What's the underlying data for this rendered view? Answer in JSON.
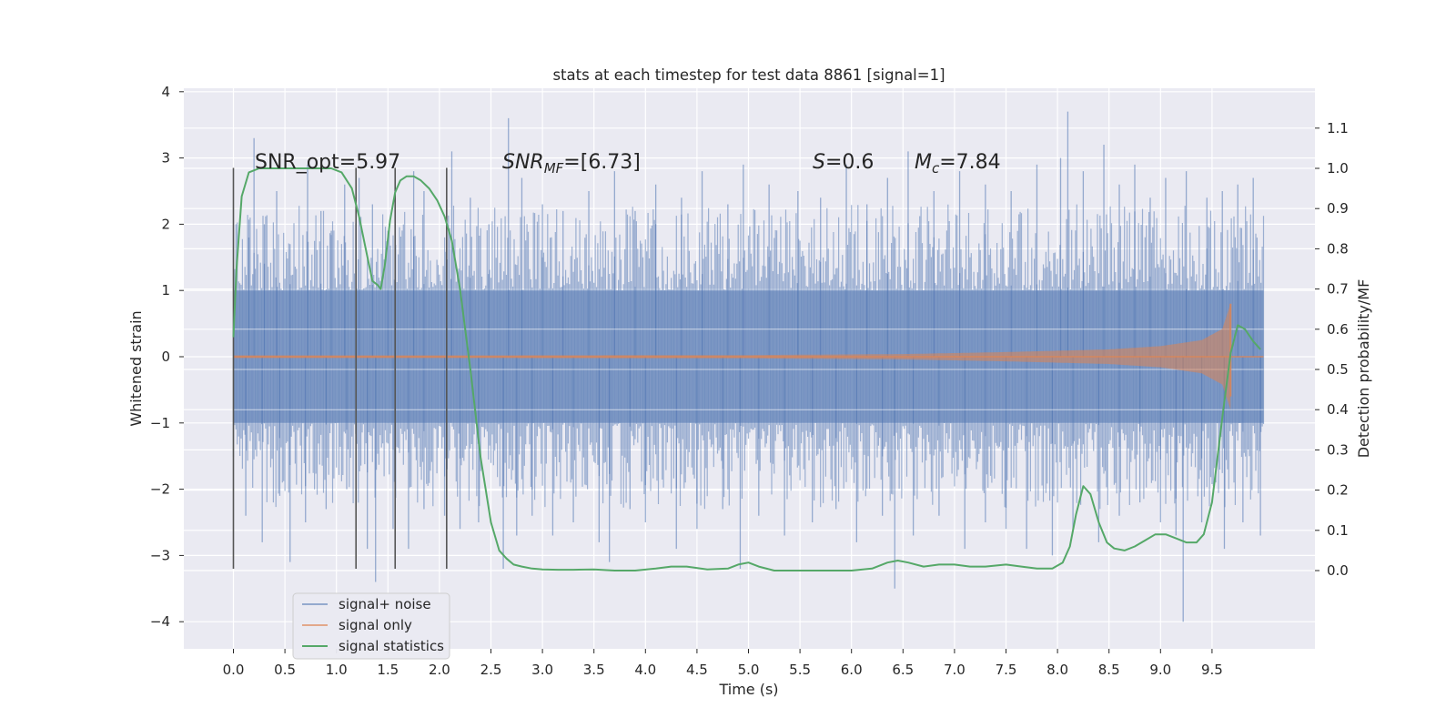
{
  "chart_data": {
    "type": "line",
    "title": "stats at each timestep for test data 8861 [signal=1]",
    "xlabel": "Time (s)",
    "ylabel_left": "Whitened strain",
    "ylabel_right": "Detection probability/MF",
    "xlim": [
      -0.5,
      10.5
    ],
    "ylim_left": [
      -4.4,
      4.1
    ],
    "ylim_right": [
      -0.2,
      1.2
    ],
    "x_ticks": [
      "0.0",
      "0.5",
      "1.0",
      "1.5",
      "2.0",
      "2.5",
      "3.0",
      "3.5",
      "4.0",
      "4.5",
      "5.0",
      "5.5",
      "6.0",
      "6.5",
      "7.0",
      "7.5",
      "8.0",
      "8.5",
      "9.0",
      "9.5"
    ],
    "y_ticks_left": [
      "4",
      "3",
      "2",
      "1",
      "0",
      "−1",
      "−2",
      "−3",
      "−4"
    ],
    "y_ticks_right": [
      "1.1",
      "1.0",
      "0.9",
      "0.8",
      "0.7",
      "0.6",
      "0.5",
      "0.4",
      "0.3",
      "0.2",
      "0.1",
      "0.0"
    ],
    "grid": true,
    "legend_position": "lower-left",
    "annotations": [
      {
        "text": "SNR_opt=5.97",
        "x": 0.2,
        "y": 2.95
      },
      {
        "text": "SNR_MF=[6.73]",
        "x": 2.6,
        "y": 2.95
      },
      {
        "text": "S=0.6",
        "x": 5.6,
        "y": 2.95
      },
      {
        "text": "M_c=7.84",
        "x": 6.6,
        "y": 2.95
      }
    ],
    "vertical_lines": [
      0.0,
      1.19,
      1.57,
      2.07
    ],
    "vertical_line_range": [
      -3.2,
      2.85
    ],
    "series": [
      {
        "name": "signal+ noise",
        "color": "#4c72b0",
        "t_range": [
          0.0,
          10.0
        ],
        "band_core": [
          -1.0,
          1.0
        ],
        "spikes": [
          [
            0.15,
            1.8
          ],
          [
            0.2,
            3.3
          ],
          [
            0.3,
            2.0
          ],
          [
            0.42,
            2.5
          ],
          [
            0.55,
            1.7
          ],
          [
            0.72,
            2.9
          ],
          [
            0.85,
            2.2
          ],
          [
            0.95,
            1.9
          ],
          [
            1.08,
            2.6
          ],
          [
            1.22,
            2.7
          ],
          [
            1.35,
            2.3
          ],
          [
            1.5,
            1.9
          ],
          [
            1.75,
            2.8
          ],
          [
            1.85,
            2.5
          ],
          [
            2.12,
            3.1
          ],
          [
            2.3,
            2.4
          ],
          [
            2.48,
            2.0
          ],
          [
            2.67,
            3.6
          ],
          [
            2.8,
            2.7
          ],
          [
            3.0,
            2.3
          ],
          [
            3.2,
            2.2
          ],
          [
            3.45,
            2.5
          ],
          [
            3.7,
            2.8
          ],
          [
            3.9,
            2.2
          ],
          [
            4.1,
            2.6
          ],
          [
            4.35,
            2.4
          ],
          [
            4.55,
            2.8
          ],
          [
            4.8,
            2.3
          ],
          [
            4.95,
            2.9
          ],
          [
            5.2,
            2.6
          ],
          [
            5.48,
            2.5
          ],
          [
            5.7,
            2.4
          ],
          [
            5.95,
            2.9
          ],
          [
            6.15,
            2.3
          ],
          [
            6.35,
            2.7
          ],
          [
            6.55,
            3.1
          ],
          [
            6.8,
            2.5
          ],
          [
            7.05,
            2.8
          ],
          [
            7.3,
            2.6
          ],
          [
            7.55,
            2.5
          ],
          [
            7.8,
            2.9
          ],
          [
            8.03,
            3.0
          ],
          [
            8.1,
            3.7
          ],
          [
            8.25,
            2.8
          ],
          [
            8.45,
            3.2
          ],
          [
            8.6,
            2.6
          ],
          [
            8.75,
            2.9
          ],
          [
            8.9,
            2.4
          ],
          [
            9.05,
            2.7
          ],
          [
            9.25,
            2.8
          ],
          [
            9.45,
            2.4
          ],
          [
            9.6,
            2.5
          ],
          [
            9.75,
            2.6
          ],
          [
            9.9,
            2.7
          ],
          [
            0.12,
            -2.4
          ],
          [
            0.28,
            -2.8
          ],
          [
            0.45,
            -2.1
          ],
          [
            0.55,
            -3.1
          ],
          [
            0.7,
            -2.5
          ],
          [
            0.9,
            -2.3
          ],
          [
            1.1,
            -2.0
          ],
          [
            1.3,
            -2.9
          ],
          [
            1.38,
            -3.4
          ],
          [
            1.55,
            -2.6
          ],
          [
            1.7,
            -2.9
          ],
          [
            1.85,
            -2.3
          ],
          [
            2.05,
            -2.4
          ],
          [
            2.2,
            -2.6
          ],
          [
            2.38,
            -2.5
          ],
          [
            2.62,
            -3.2
          ],
          [
            2.75,
            -2.7
          ],
          [
            2.9,
            -2.4
          ],
          [
            3.1,
            -2.7
          ],
          [
            3.3,
            -2.5
          ],
          [
            3.55,
            -2.8
          ],
          [
            3.65,
            -3.1
          ],
          [
            3.85,
            -2.3
          ],
          [
            4.0,
            -2.5
          ],
          [
            4.3,
            -2.9
          ],
          [
            4.5,
            -2.6
          ],
          [
            4.75,
            -2.3
          ],
          [
            4.92,
            -3.2
          ],
          [
            5.1,
            -2.4
          ],
          [
            5.35,
            -2.7
          ],
          [
            5.62,
            -2.5
          ],
          [
            5.85,
            -2.3
          ],
          [
            6.05,
            -2.8
          ],
          [
            6.3,
            -2.4
          ],
          [
            6.42,
            -3.5
          ],
          [
            6.6,
            -2.7
          ],
          [
            6.85,
            -2.4
          ],
          [
            7.1,
            -2.9
          ],
          [
            7.3,
            -2.5
          ],
          [
            7.5,
            -2.6
          ],
          [
            7.7,
            -2.9
          ],
          [
            7.95,
            -3.0
          ],
          [
            8.15,
            -2.6
          ],
          [
            8.4,
            -2.8
          ],
          [
            8.6,
            -2.4
          ],
          [
            8.8,
            -2.2
          ],
          [
            9.0,
            -2.5
          ],
          [
            9.15,
            -2.7
          ],
          [
            9.22,
            -4.0
          ],
          [
            9.4,
            -2.5
          ],
          [
            9.62,
            -2.9
          ],
          [
            9.8,
            -2.5
          ],
          [
            9.97,
            -2.7
          ]
        ]
      },
      {
        "name": "signal only",
        "color": "#dd8452",
        "envelope": [
          [
            0.0,
            0.02
          ],
          [
            2.0,
            0.02
          ],
          [
            5.0,
            0.025
          ],
          [
            6.5,
            0.04
          ],
          [
            7.5,
            0.07
          ],
          [
            8.5,
            0.11
          ],
          [
            9.0,
            0.16
          ],
          [
            9.4,
            0.25
          ],
          [
            9.6,
            0.42
          ],
          [
            9.68,
            0.8
          ],
          [
            9.7,
            0.0
          ],
          [
            10.0,
            0.0
          ]
        ]
      },
      {
        "name": "signal statistics",
        "color": "#55a868",
        "axis": "right",
        "x": [
          0.0,
          0.03,
          0.08,
          0.15,
          0.25,
          0.4,
          0.6,
          0.8,
          0.95,
          1.05,
          1.15,
          1.22,
          1.3,
          1.35,
          1.4,
          1.43,
          1.47,
          1.52,
          1.57,
          1.62,
          1.68,
          1.75,
          1.82,
          1.9,
          1.98,
          2.05,
          2.12,
          2.2,
          2.3,
          2.4,
          2.5,
          2.58,
          2.65,
          2.72,
          2.8,
          2.9,
          3.0,
          3.15,
          3.3,
          3.5,
          3.7,
          3.9,
          4.1,
          4.25,
          4.4,
          4.6,
          4.8,
          4.9,
          5.0,
          5.1,
          5.25,
          5.4,
          5.6,
          5.8,
          6.0,
          6.2,
          6.35,
          6.45,
          6.55,
          6.7,
          6.85,
          7.0,
          7.15,
          7.3,
          7.5,
          7.65,
          7.8,
          7.95,
          8.05,
          8.12,
          8.18,
          8.25,
          8.32,
          8.4,
          8.48,
          8.55,
          8.65,
          8.75,
          8.85,
          8.95,
          9.05,
          9.15,
          9.25,
          9.35,
          9.42,
          9.5,
          9.6,
          9.68,
          9.75,
          9.82,
          9.9,
          9.97
        ],
        "y": [
          0.58,
          0.75,
          0.93,
          0.99,
          1.0,
          1.0,
          1.0,
          1.0,
          1.0,
          0.99,
          0.95,
          0.88,
          0.78,
          0.72,
          0.71,
          0.7,
          0.76,
          0.87,
          0.94,
          0.97,
          0.98,
          0.98,
          0.97,
          0.95,
          0.92,
          0.88,
          0.82,
          0.7,
          0.5,
          0.28,
          0.12,
          0.05,
          0.03,
          0.015,
          0.01,
          0.005,
          0.003,
          0.002,
          0.002,
          0.003,
          0.0,
          0.0,
          0.005,
          0.01,
          0.01,
          0.003,
          0.005,
          0.015,
          0.02,
          0.01,
          0.0,
          0.0,
          0.0,
          0.0,
          0.0,
          0.005,
          0.02,
          0.025,
          0.02,
          0.01,
          0.015,
          0.015,
          0.01,
          0.01,
          0.015,
          0.01,
          0.005,
          0.005,
          0.02,
          0.06,
          0.14,
          0.21,
          0.19,
          0.12,
          0.07,
          0.055,
          0.05,
          0.06,
          0.075,
          0.09,
          0.09,
          0.08,
          0.07,
          0.07,
          0.09,
          0.17,
          0.38,
          0.54,
          0.61,
          0.6,
          0.57,
          0.55
        ]
      }
    ]
  }
}
